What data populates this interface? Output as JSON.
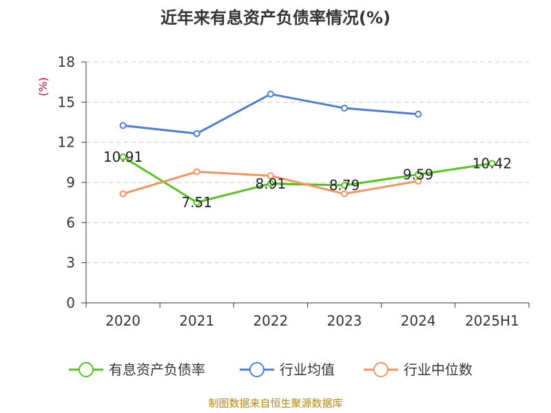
{
  "chart_data": {
    "type": "line",
    "title": "近年来有息资产负债率情况(%)",
    "ylabel": "(%)",
    "categories": [
      "2020",
      "2021",
      "2022",
      "2023",
      "2024",
      "2025H1"
    ],
    "ylim": [
      0,
      18
    ],
    "yticks": [
      0,
      3,
      6,
      9,
      12,
      15,
      18
    ],
    "grid": true,
    "legend_position": "bottom",
    "series": [
      {
        "name": "有息资产负债率",
        "color": "#52c41a",
        "values": [
          10.91,
          7.51,
          8.91,
          8.79,
          9.59,
          10.42
        ],
        "labels": [
          "10.91",
          "7.51",
          "8.91",
          "8.79",
          "9.59",
          "10.42"
        ]
      },
      {
        "name": "行业均值",
        "color": "#4a7fd4",
        "values": [
          13.25,
          12.65,
          15.6,
          14.55,
          14.1,
          null
        ]
      },
      {
        "name": "行业中位数",
        "color": "#f5925e",
        "values": [
          8.15,
          9.8,
          9.5,
          8.15,
          9.1,
          null
        ]
      }
    ]
  },
  "source": "制图数据来自恒生聚源数据库"
}
